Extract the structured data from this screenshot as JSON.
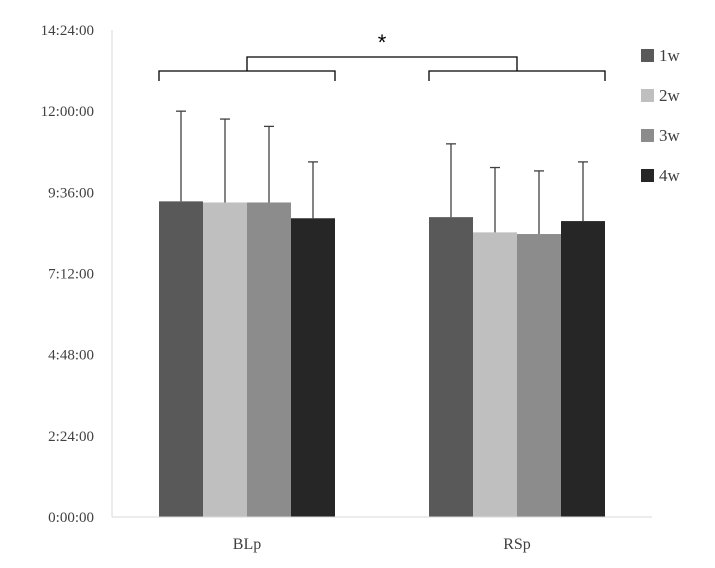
{
  "chart_data": {
    "type": "bar",
    "title": "",
    "xlabel": "",
    "ylabel": "",
    "categories": [
      "BLp",
      "RSp"
    ],
    "y_unit": "h:mm:ss",
    "ylim": [
      "0:00:00",
      "14:24:00"
    ],
    "y_ticks": [
      "0:00:00",
      "2:24:00",
      "4:48:00",
      "7:12:00",
      "9:36:00",
      "12:00:00",
      "14:24:00"
    ],
    "grid": false,
    "legend_position": "right",
    "series": [
      {
        "name": "1w",
        "color": "#595959",
        "values": [
          "9:20:00",
          "8:52:00"
        ],
        "errors": [
          "2:40:00",
          "2:10:00"
        ]
      },
      {
        "name": "2w",
        "color": "#bfbfbf",
        "values": [
          "9:18:00",
          "8:25:00"
        ],
        "errors": [
          "2:28:00",
          "1:55:00"
        ]
      },
      {
        "name": "3w",
        "color": "#8c8c8c",
        "values": [
          "9:18:00",
          "8:22:00"
        ],
        "errors": [
          "2:15:00",
          "1:52:00"
        ]
      },
      {
        "name": "4w",
        "color": "#262626",
        "values": [
          "8:50:00",
          "8:45:00"
        ],
        "errors": [
          "1:40:00",
          "1:45:00"
        ]
      }
    ],
    "significance": {
      "label": "*",
      "between": [
        "BLp",
        "RSp"
      ]
    }
  }
}
